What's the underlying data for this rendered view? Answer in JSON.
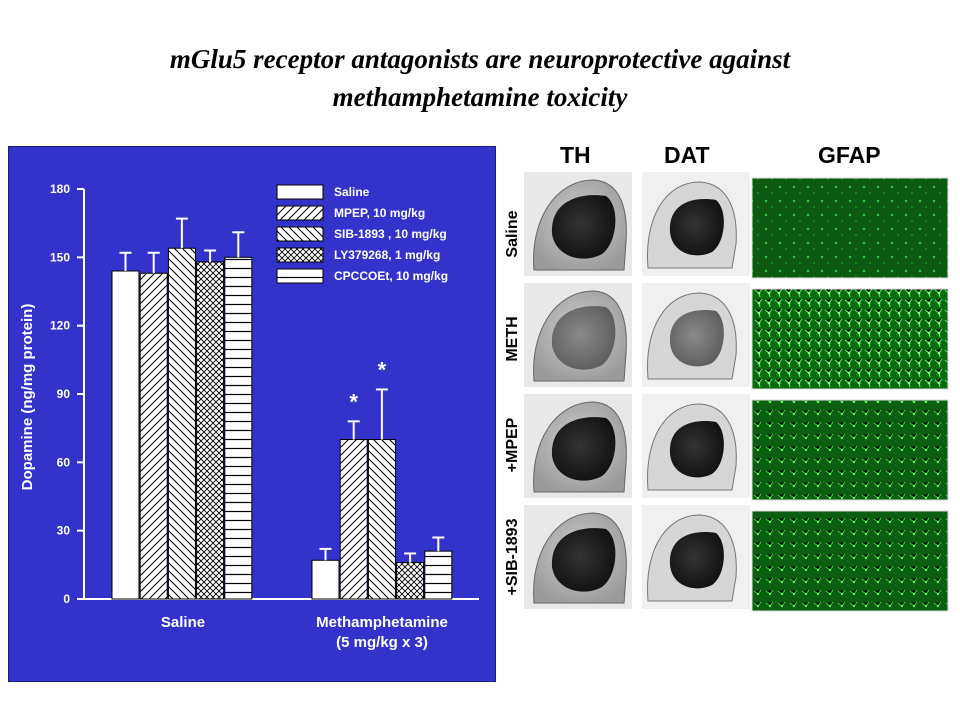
{
  "title_lines": [
    "mGlu5 receptor antagonists are neuroprotective against",
    "methamphetamine toxicity"
  ],
  "chart_data": {
    "type": "bar",
    "ylabel": "Dopamine (ng/mg protein)",
    "ylim": [
      0,
      180
    ],
    "yticks": [
      "0",
      "30",
      "60",
      "90",
      "120",
      "150",
      "180"
    ],
    "categories": [
      "Saline",
      "Methamphetamine\n(5 mg/kg x 3)"
    ],
    "series": [
      {
        "name": "Saline",
        "values": [
          144,
          17
        ],
        "errors": [
          8,
          5
        ]
      },
      {
        "name": "MPEP, 10 mg/kg",
        "values": [
          143,
          70
        ],
        "errors": [
          9,
          8
        ]
      },
      {
        "name": "SIB-1893 , 10 mg/kg",
        "values": [
          154,
          70
        ],
        "errors": [
          13,
          22
        ]
      },
      {
        "name": "LY379268, 1 mg/kg",
        "values": [
          148,
          16
        ],
        "errors": [
          5,
          4
        ]
      },
      {
        "name": "CPCCOEt, 10 mg/kg",
        "values": [
          150,
          21
        ],
        "errors": [
          11,
          6
        ]
      }
    ],
    "annotations": [
      "*",
      "*"
    ],
    "legend_position": "top-right",
    "colors": {
      "panel": "#3333cc",
      "bar": "#ffffff",
      "text": "#ffffff"
    }
  },
  "micrographs": {
    "columns": [
      "TH",
      "DAT",
      "GFAP"
    ],
    "rows": [
      "Saline",
      "METH",
      "+MPEP",
      "+SIB-1893"
    ]
  }
}
